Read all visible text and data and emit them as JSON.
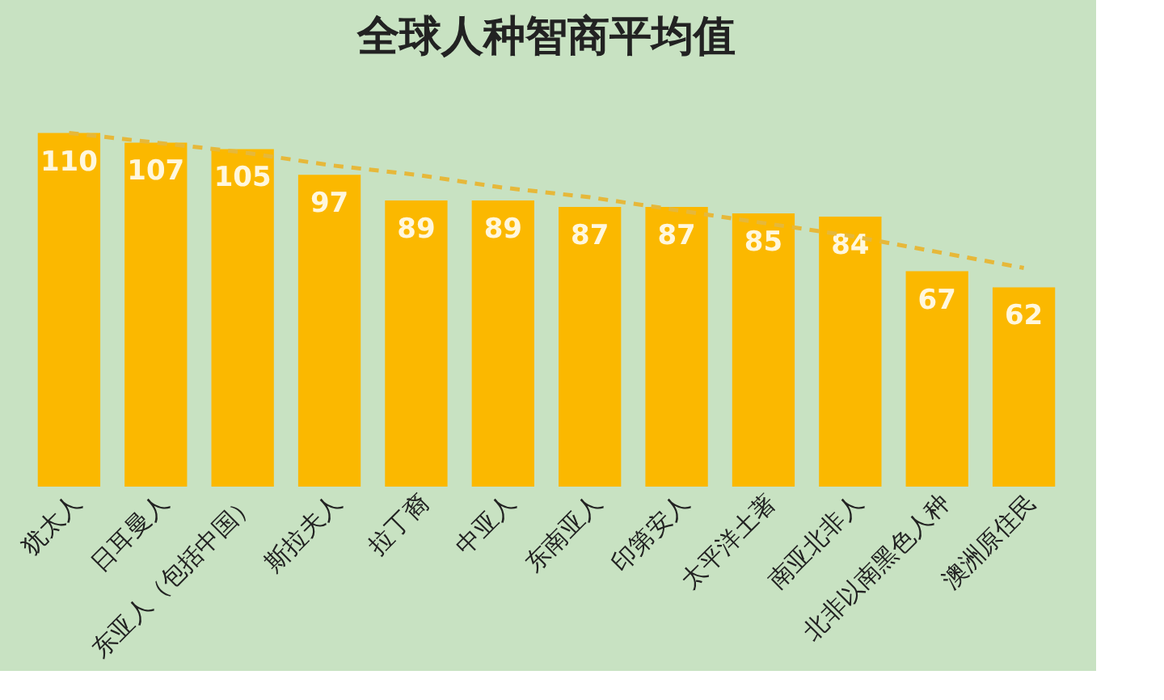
{
  "chart_data": {
    "type": "bar",
    "title": "全球人种智商平均值",
    "categories": [
      "犹太人",
      "日耳曼人",
      "东亚人（包括中国）",
      "斯拉夫人",
      "拉丁裔",
      "中亚人",
      "东南亚人",
      "印第安人",
      "太平洋土著",
      "南亚北非人",
      "北非以南黑色人种",
      "澳洲原住民"
    ],
    "series": [
      {
        "color": "#fbb800",
        "values": [
          110,
          107,
          105,
          97,
          89,
          89,
          87,
          87,
          85,
          84,
          67,
          62
        ],
        "value_labels": [
          "110",
          "107",
          "105",
          "97",
          "89",
          "89",
          "87",
          "87",
          "85",
          "84",
          "67",
          "62"
        ]
      },
      {
        "type": "line",
        "color": "#e6b83a",
        "line_style": "dashed",
        "values": [
          110,
          107,
          104,
          100,
          97,
          93,
          90,
          86,
          82,
          78,
          73,
          68
        ]
      }
    ],
    "grid": false
  }
}
